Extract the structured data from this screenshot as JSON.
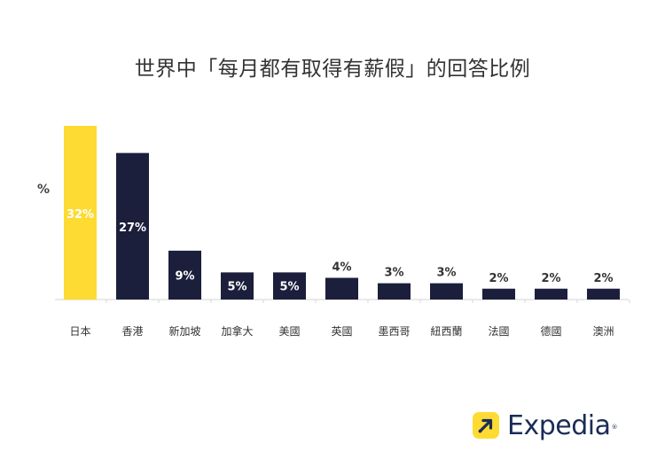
{
  "title": "世界中「每月都有取得有薪假」的回答比例",
  "chart_data": {
    "type": "bar",
    "title": "世界中「每月都有取得有薪假」的回答比例",
    "ylabel": "%",
    "xlabel": "",
    "categories": [
      "日本",
      "香港",
      "新加坡",
      "加拿大",
      "美國",
      "英國",
      "墨西哥",
      "紐西蘭",
      "法國",
      "德國",
      "澳洲"
    ],
    "values": [
      32,
      27,
      9,
      5,
      5,
      4,
      3,
      3,
      2,
      2,
      2
    ],
    "value_labels": [
      "32%",
      "27%",
      "9%",
      "5%",
      "5%",
      "4%",
      "3%",
      "3%",
      "2%",
      "2%",
      "2%"
    ],
    "ylim": [
      0,
      32
    ],
    "grid": false,
    "colors": {
      "highlight": "#fddb32",
      "default": "#1b1f3b",
      "label_on_bar": "#ffffff",
      "label_above": "#333333"
    },
    "highlight_index": 0
  },
  "brand": {
    "name": "Expedia",
    "trademark": "®",
    "icon": "expedia-arrow-icon",
    "color": "#1b2c56",
    "icon_color": "#fddb32"
  }
}
